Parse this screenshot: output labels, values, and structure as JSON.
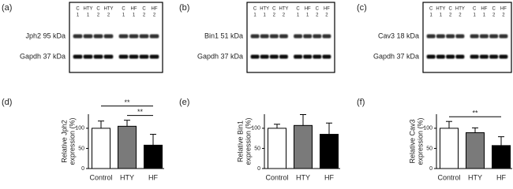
{
  "blots": [
    {
      "label": "(a)",
      "lanes": [
        {
          "group": "C",
          "n": 1
        },
        {
          "group": "HTY",
          "n": 1
        },
        {
          "group": "C",
          "n": 2
        },
        {
          "group": "HTY",
          "n": 2
        },
        {
          "group": "C",
          "n": 1
        },
        {
          "group": "HF",
          "n": 1
        },
        {
          "group": "C",
          "n": 2
        },
        {
          "group": "HF",
          "n": 2
        }
      ],
      "rows": [
        "Jph2 95 kDa",
        "Gapdh 37 kDa"
      ]
    },
    {
      "label": "(b)",
      "lanes": [
        {
          "group": "C",
          "n": 1
        },
        {
          "group": "HTY",
          "n": 1
        },
        {
          "group": "C",
          "n": 2
        },
        {
          "group": "HTY",
          "n": 2
        },
        {
          "group": "C",
          "n": 1
        },
        {
          "group": "HF",
          "n": 1
        },
        {
          "group": "C",
          "n": 2
        },
        {
          "group": "HF",
          "n": 2
        }
      ],
      "rows": [
        "Bin1 51 kDa",
        "Gapdh 37 kDa"
      ]
    },
    {
      "label": "(c)",
      "lanes": [
        {
          "group": "C",
          "n": 1
        },
        {
          "group": "HTY",
          "n": 1
        },
        {
          "group": "C",
          "n": 2
        },
        {
          "group": "HTY",
          "n": 2
        },
        {
          "group": "C",
          "n": 1
        },
        {
          "group": "HF",
          "n": 1
        },
        {
          "group": "C",
          "n": 2
        },
        {
          "group": "HF",
          "n": 2
        }
      ],
      "rows": [
        "Cav3 18 kDa",
        "Gapdh 37 kDa"
      ]
    }
  ],
  "chart_data": [
    {
      "type": "bar",
      "panel_label": "(d)",
      "ylabel": [
        "Relative Jph2",
        "expression (%)"
      ],
      "categories": [
        "Control",
        "HTY",
        "HF"
      ],
      "values": [
        100,
        105,
        58
      ],
      "errors": [
        18,
        15,
        27
      ],
      "colors": [
        "#ffffff",
        "#7a7a7a",
        "#000000"
      ],
      "ylim": [
        0,
        135
      ],
      "yticks": [
        0,
        50,
        100
      ],
      "significance": [
        {
          "between": [
            0,
            2
          ],
          "label": "**"
        },
        {
          "between": [
            1,
            2
          ],
          "label": "**"
        }
      ]
    },
    {
      "type": "bar",
      "panel_label": "(e)",
      "ylabel": [
        "Relative Bin1",
        "expression (%)"
      ],
      "categories": [
        "Control",
        "HTY",
        "HF"
      ],
      "values": [
        100,
        107,
        85
      ],
      "errors": [
        10,
        27,
        28
      ],
      "colors": [
        "#ffffff",
        "#7a7a7a",
        "#000000"
      ],
      "ylim": [
        0,
        135
      ],
      "yticks": [
        0,
        50,
        100
      ],
      "significance": []
    },
    {
      "type": "bar",
      "panel_label": "(f)",
      "ylabel": [
        "Relative Cav3",
        "expression (%)"
      ],
      "categories": [
        "Control",
        "HTY",
        "HF"
      ],
      "values": [
        100,
        89,
        57
      ],
      "errors": [
        17,
        12,
        22
      ],
      "colors": [
        "#ffffff",
        "#7a7a7a",
        "#000000"
      ],
      "ylim": [
        0,
        135
      ],
      "yticks": [
        0,
        50,
        100
      ],
      "significance": [
        {
          "between": [
            0,
            2
          ],
          "label": "**"
        }
      ]
    }
  ]
}
